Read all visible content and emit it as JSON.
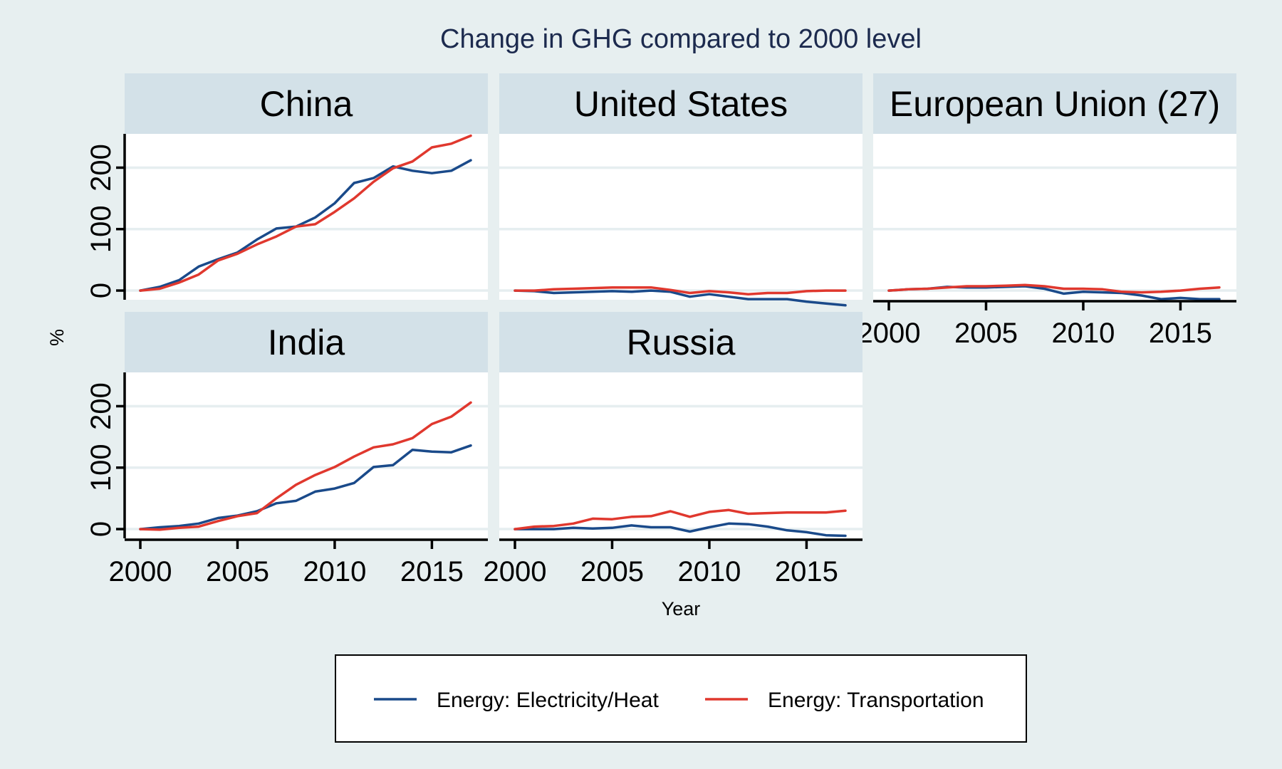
{
  "chart_data": {
    "type": "line",
    "title": "Change in GHG compared to 2000 level",
    "xlabel": "Year",
    "ylabel": "%",
    "xlim": [
      2000,
      2017
    ],
    "ylim": [
      -15,
      255
    ],
    "x_ticks": [
      2000,
      2005,
      2010,
      2015
    ],
    "y_ticks": [
      0,
      100,
      200
    ],
    "grid": true,
    "legend_position": "bottom",
    "colors": {
      "Energy: Electricity/Heat": "#1a4a8a",
      "Energy: Transportation": "#e0382e"
    },
    "x": [
      2000,
      2001,
      2002,
      2003,
      2004,
      2005,
      2006,
      2007,
      2008,
      2009,
      2010,
      2011,
      2012,
      2013,
      2014,
      2015,
      2016,
      2017
    ],
    "panels": [
      {
        "name": "China",
        "series": [
          {
            "name": "Energy: Electricity/Heat",
            "values": [
              0,
              6,
              17,
              39,
              51,
              62,
              83,
              101,
              104,
              119,
              142,
              175,
              183,
              202,
              195,
              191,
              195,
              212
            ]
          },
          {
            "name": "Energy: Transportation",
            "values": [
              0,
              3,
              13,
              26,
              49,
              60,
              75,
              88,
              104,
              108,
              128,
              150,
              177,
              199,
              210,
              233,
              239,
              252
            ]
          }
        ]
      },
      {
        "name": "United States",
        "series": [
          {
            "name": "Energy: Electricity/Heat",
            "values": [
              0,
              -1,
              -4,
              -3,
              -2,
              -1,
              -2,
              0,
              -2,
              -10,
              -6,
              -10,
              -14,
              -14,
              -14,
              -18,
              -21,
              -24
            ]
          },
          {
            "name": "Energy: Transportation",
            "values": [
              0,
              0,
              2,
              3,
              4,
              5,
              5,
              5,
              1,
              -4,
              -1,
              -3,
              -6,
              -4,
              -4,
              -1,
              0,
              0
            ]
          }
        ]
      },
      {
        "name": "European Union (27)",
        "series": [
          {
            "name": "Energy: Electricity/Heat",
            "values": [
              0,
              2,
              3,
              6,
              5,
              5,
              6,
              7,
              3,
              -5,
              -2,
              -3,
              -4,
              -8,
              -14,
              -12,
              -14,
              -14
            ]
          },
          {
            "name": "Energy: Transportation",
            "values": [
              0,
              2,
              3,
              5,
              7,
              7,
              8,
              9,
              7,
              3,
              3,
              2,
              -2,
              -3,
              -2,
              0,
              3,
              5
            ]
          }
        ]
      },
      {
        "name": "India",
        "series": [
          {
            "name": "Energy: Electricity/Heat",
            "values": [
              0,
              3,
              5,
              9,
              18,
              22,
              29,
              42,
              46,
              61,
              66,
              75,
              101,
              104,
              129,
              126,
              125,
              136
            ]
          },
          {
            "name": "Energy: Transportation",
            "values": [
              0,
              -1,
              2,
              4,
              13,
              21,
              26,
              50,
              72,
              88,
              101,
              118,
              133,
              138,
              148,
              171,
              183,
              206
            ]
          }
        ]
      },
      {
        "name": "Russia",
        "series": [
          {
            "name": "Energy: Electricity/Heat",
            "values": [
              0,
              0,
              0,
              2,
              1,
              2,
              6,
              3,
              3,
              -4,
              3,
              9,
              8,
              4,
              -2,
              -5,
              -10,
              -11
            ]
          },
          {
            "name": "Energy: Transportation",
            "values": [
              0,
              4,
              5,
              9,
              17,
              16,
              20,
              21,
              29,
              20,
              28,
              31,
              25,
              26,
              27,
              27,
              27,
              30
            ]
          }
        ]
      }
    ],
    "legend": [
      "Energy: Electricity/Heat",
      "Energy: Transportation"
    ]
  }
}
